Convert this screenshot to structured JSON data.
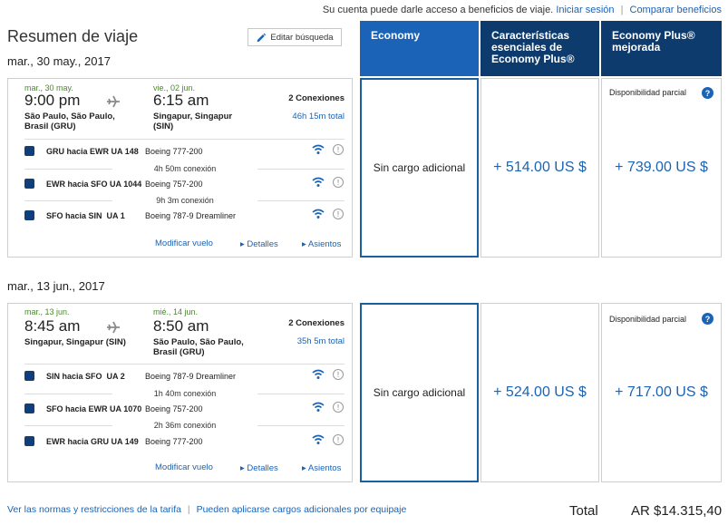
{
  "topbar": {
    "message": "Su cuenta puede darle acceso a beneficios de viaje.",
    "login_link": "Iniciar sesión",
    "compare_link": "Comparar beneficios"
  },
  "summary": {
    "title": "Resumen de viaje",
    "edit_label": "Editar búsqueda"
  },
  "columns": [
    {
      "label": "Economy",
      "color": "#1a63b6"
    },
    {
      "label": "Características esenciales de Economy Plus®",
      "color": "#0d3b6e"
    },
    {
      "label": "Economy Plus® mejorada",
      "color": "#0d3b6e"
    }
  ],
  "trips": [
    {
      "date": "mar., 30 may., 2017",
      "depart_date": "mar., 30 may.",
      "depart_time": "9:00 pm",
      "depart_city": "São Paulo, São Paulo, Brasil (GRU)",
      "arrive_date": "vie., 02 jun.",
      "arrive_time": "6:15 am",
      "arrive_city": "Singapur, Singapur (SIN)",
      "connections": "2 Conexiones",
      "duration": "46h 15m total",
      "segments": [
        {
          "route": "GRU hacia EWR",
          "flight": "UA 148",
          "aircraft": "Boeing 777-200"
        },
        {
          "route": "EWR hacia SFO",
          "flight": "UA 1044",
          "aircraft": "Boeing 757-200"
        },
        {
          "route": "SFO hacia SIN",
          "flight": "UA 1",
          "aircraft": "Boeing 787-9 Dreamliner"
        }
      ],
      "layovers": [
        "4h 50m conexión",
        "9h 3m conexión"
      ],
      "modify_link": "Modificar vuelo",
      "details_link": "Detalles",
      "seats_link": "Asientos",
      "economy": "Sin cargo adicional",
      "plus_essentials": "+ 514.00 US $",
      "plus_enhanced": "+ 739.00 US $",
      "partial": "Disponibilidad parcial"
    },
    {
      "date": "mar., 13 jun., 2017",
      "depart_date": "mar., 13 jun.",
      "depart_time": "8:45 am",
      "depart_city": "Singapur, Singapur (SIN)",
      "arrive_date": "mié., 14 jun.",
      "arrive_time": "8:50 am",
      "arrive_city": "São Paulo, São Paulo, Brasil (GRU)",
      "connections": "2 Conexiones",
      "duration": "35h 5m total",
      "segments": [
        {
          "route": "SIN hacia SFO",
          "flight": "UA 2",
          "aircraft": "Boeing 787-9 Dreamliner"
        },
        {
          "route": "SFO hacia EWR",
          "flight": "UA 1070",
          "aircraft": "Boeing 757-200"
        },
        {
          "route": "EWR hacia GRU",
          "flight": "UA 149",
          "aircraft": "Boeing 777-200"
        }
      ],
      "layovers": [
        "1h 40m conexión",
        "2h 36m conexión"
      ],
      "modify_link": "Modificar vuelo",
      "details_link": "Detalles",
      "seats_link": "Asientos",
      "economy": "Sin cargo adicional",
      "plus_essentials": "+ 524.00 US $",
      "plus_enhanced": "+ 717.00 US $",
      "partial": "Disponibilidad parcial"
    }
  ],
  "footer": {
    "fare_rules": "Ver las normas y restricciones de la tarifa",
    "baggage": "Pueden aplicarse cargos adicionales por equipaje",
    "total_label": "Total",
    "total_value": "AR $14.315,40"
  }
}
